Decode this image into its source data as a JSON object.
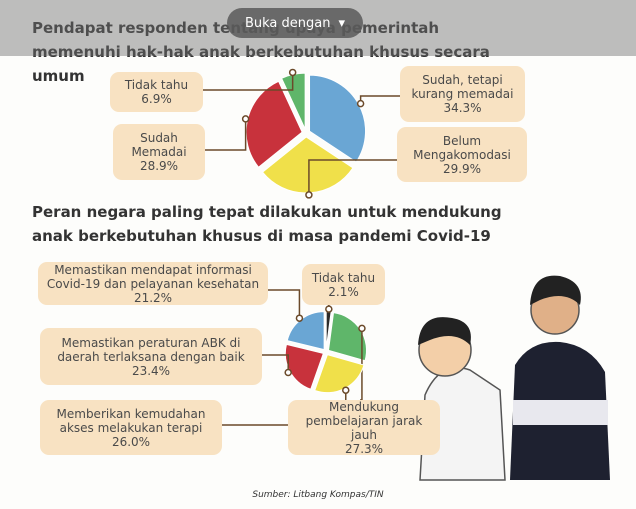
{
  "toolbar": {
    "button": "Buka dengan"
  },
  "chart_data": [
    {
      "type": "pie",
      "title": "Pendapat responden tentang upaya pemerintah memenuhi hak-hak anak berkebutuhan khusus secara umum",
      "labels": [
        "Sudah, tetapi kurang memadai",
        "Belum Mengakomodasi",
        "Sudah Memadai",
        "Tidak tahu"
      ],
      "values": [
        34.3,
        29.9,
        28.9,
        6.9
      ],
      "value_labels": [
        "34.3%",
        "29.9%",
        "28.9%",
        "6.9%"
      ],
      "colors": [
        "#6aa6d4",
        "#f0e04a",
        "#c8323c",
        "#5fb66a"
      ]
    },
    {
      "type": "pie",
      "title": "Peran negara paling tepat dilakukan untuk mendukung anak berkebutuhan khusus di masa pandemi Covid-19",
      "labels": [
        "Tidak tahu",
        "Mendukung pembelajaran jarak jauh",
        "Memberikan kemudahan akses melakukan terapi",
        "Memastikan peraturan ABK di daerah terlaksana dengan baik",
        "Memastikan mendapat informasi Covid-19 dan pelayanan kesehatan"
      ],
      "values": [
        2.1,
        27.3,
        26.0,
        23.4,
        21.2
      ],
      "value_labels": [
        "2.1%",
        "27.3%",
        "26.0%",
        "23.4%",
        "21.2%"
      ],
      "colors": [
        "#2b2b2b",
        "#5fb66a",
        "#f0e04a",
        "#c8323c",
        "#6aa6d4"
      ]
    }
  ],
  "source": "Sumber: Litbang Kompas/TIN"
}
